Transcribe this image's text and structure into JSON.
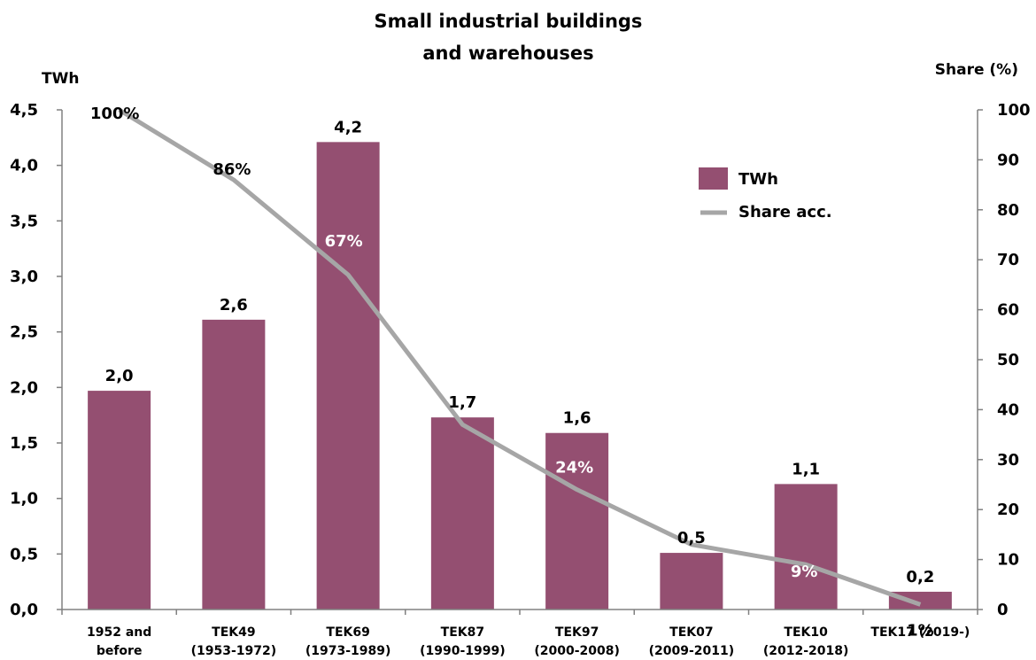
{
  "chart_data": {
    "type": "bar",
    "title_lines": [
      "Small industrial buildings",
      "and warehouses"
    ],
    "ylabel": "TWh",
    "y2label": "Share (%)",
    "ylim": [
      0,
      4.5
    ],
    "y2lim": [
      0,
      100
    ],
    "y_ticks": [
      "0,0",
      "0,5",
      "1,0",
      "1,5",
      "2,0",
      "2,5",
      "3,0",
      "3,5",
      "4,0",
      "4,5"
    ],
    "y2_ticks": [
      "0",
      "10",
      "20",
      "30",
      "40",
      "50",
      "60",
      "70",
      "80",
      "90",
      "100"
    ],
    "categories": [
      [
        "1952 and",
        "before"
      ],
      [
        "TEK49",
        "(1953-1972)"
      ],
      [
        "TEK69",
        "(1973-1989)"
      ],
      [
        "TEK87",
        "(1990-1999)"
      ],
      [
        "TEK97",
        "(2000-2008)"
      ],
      [
        "TEK07",
        "(2009-2011)"
      ],
      [
        "TEK10",
        "(2012-2018)"
      ],
      [
        "TEK17 (2019-)"
      ]
    ],
    "series": [
      {
        "name": "TWh",
        "kind": "bar",
        "color": "#944f71",
        "values": [
          1.97,
          2.61,
          4.21,
          1.73,
          1.59,
          0.51,
          1.13,
          0.16
        ],
        "labels": [
          "2,0",
          "2,6",
          "4,2",
          "1,7",
          "1,6",
          "0,5",
          "1,1",
          "0,2"
        ]
      },
      {
        "name": "Share acc.",
        "kind": "line",
        "axis": "secondary",
        "color": "#a6a6a6",
        "values": [
          100,
          86,
          67,
          37,
          24,
          13,
          9,
          1
        ],
        "labels": [
          "100%",
          "86%",
          "67%",
          "37%",
          "24%",
          "13%",
          "9%",
          "1%"
        ]
      }
    ],
    "legend_position": "top-right",
    "grid": false
  }
}
